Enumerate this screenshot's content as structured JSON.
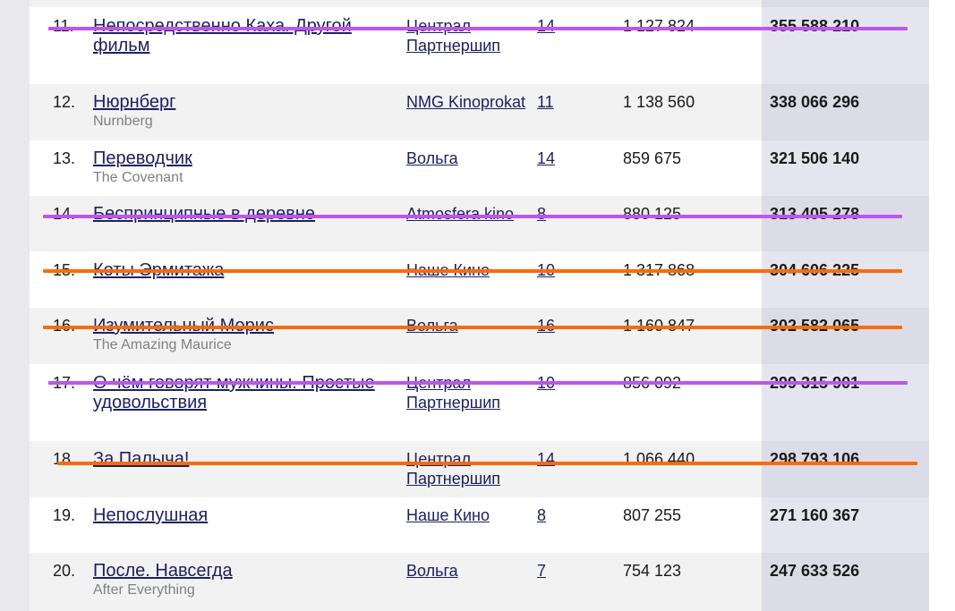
{
  "colors": {
    "link": "#1e2060",
    "subtitle": "#808080",
    "strike_purple": "#bf55ec",
    "strike_orange": "#ff6a00"
  },
  "rows": [
    {
      "rank": "11.",
      "title": "Непосредственно Каха. Другой фильм",
      "orig": "",
      "dist": "Централ Партнершип",
      "weeks": "14",
      "viewers": "1 127 824",
      "gross": "355 588 210",
      "strike": "purple"
    },
    {
      "rank": "12.",
      "title": "Нюрнберг",
      "orig": "Nurnberg",
      "dist": "NMG Kinoprokat",
      "weeks": "11",
      "viewers": "1 138 560",
      "gross": "338 066 296",
      "strike": ""
    },
    {
      "rank": "13.",
      "title": "Переводчик",
      "orig": "The Covenant",
      "dist": "Вольга",
      "weeks": "14",
      "viewers": "859 675",
      "gross": "321 506 140",
      "strike": ""
    },
    {
      "rank": "14.",
      "title": "Беспринципные в деревне",
      "orig": "",
      "dist": "Atmosfera kino",
      "weeks": "8",
      "viewers": "880 125",
      "gross": "313 405 278",
      "strike": "purple"
    },
    {
      "rank": "15.",
      "title": "Коты Эрмитажа",
      "orig": "",
      "dist": "Наше Кино",
      "weeks": "10",
      "viewers": "1 317 868",
      "gross": "304 606 225",
      "strike": "orange"
    },
    {
      "rank": "16.",
      "title": "Изумительный Морис",
      "orig": "The Amazing Maurice",
      "dist": "Вольга",
      "weeks": "16",
      "viewers": "1 160 847",
      "gross": "302 582 065",
      "strike": "orange"
    },
    {
      "rank": "17.",
      "title": "О чём говорят мужчины. Простые удовольствия",
      "orig": "",
      "dist": "Централ Партнершип",
      "weeks": "10",
      "viewers": "856 092",
      "gross": "299 315 901",
      "strike": "purple"
    },
    {
      "rank": "18.",
      "title": "За Палыча!",
      "orig": "",
      "dist": "Централ Партнершип",
      "weeks": "14",
      "viewers": "1 066 440",
      "gross": "298 793 106",
      "strike": "orange"
    },
    {
      "rank": "19.",
      "title": "Непослушная",
      "orig": "",
      "dist": "Наше Кино",
      "weeks": "8",
      "viewers": "807 255",
      "gross": "271 160 367",
      "strike": ""
    },
    {
      "rank": "20.",
      "title": "После. Навсегда",
      "orig": "After Everything",
      "dist": "Вольга",
      "weeks": "7",
      "viewers": "754 123",
      "gross": "247 633 526",
      "strike": ""
    }
  ]
}
